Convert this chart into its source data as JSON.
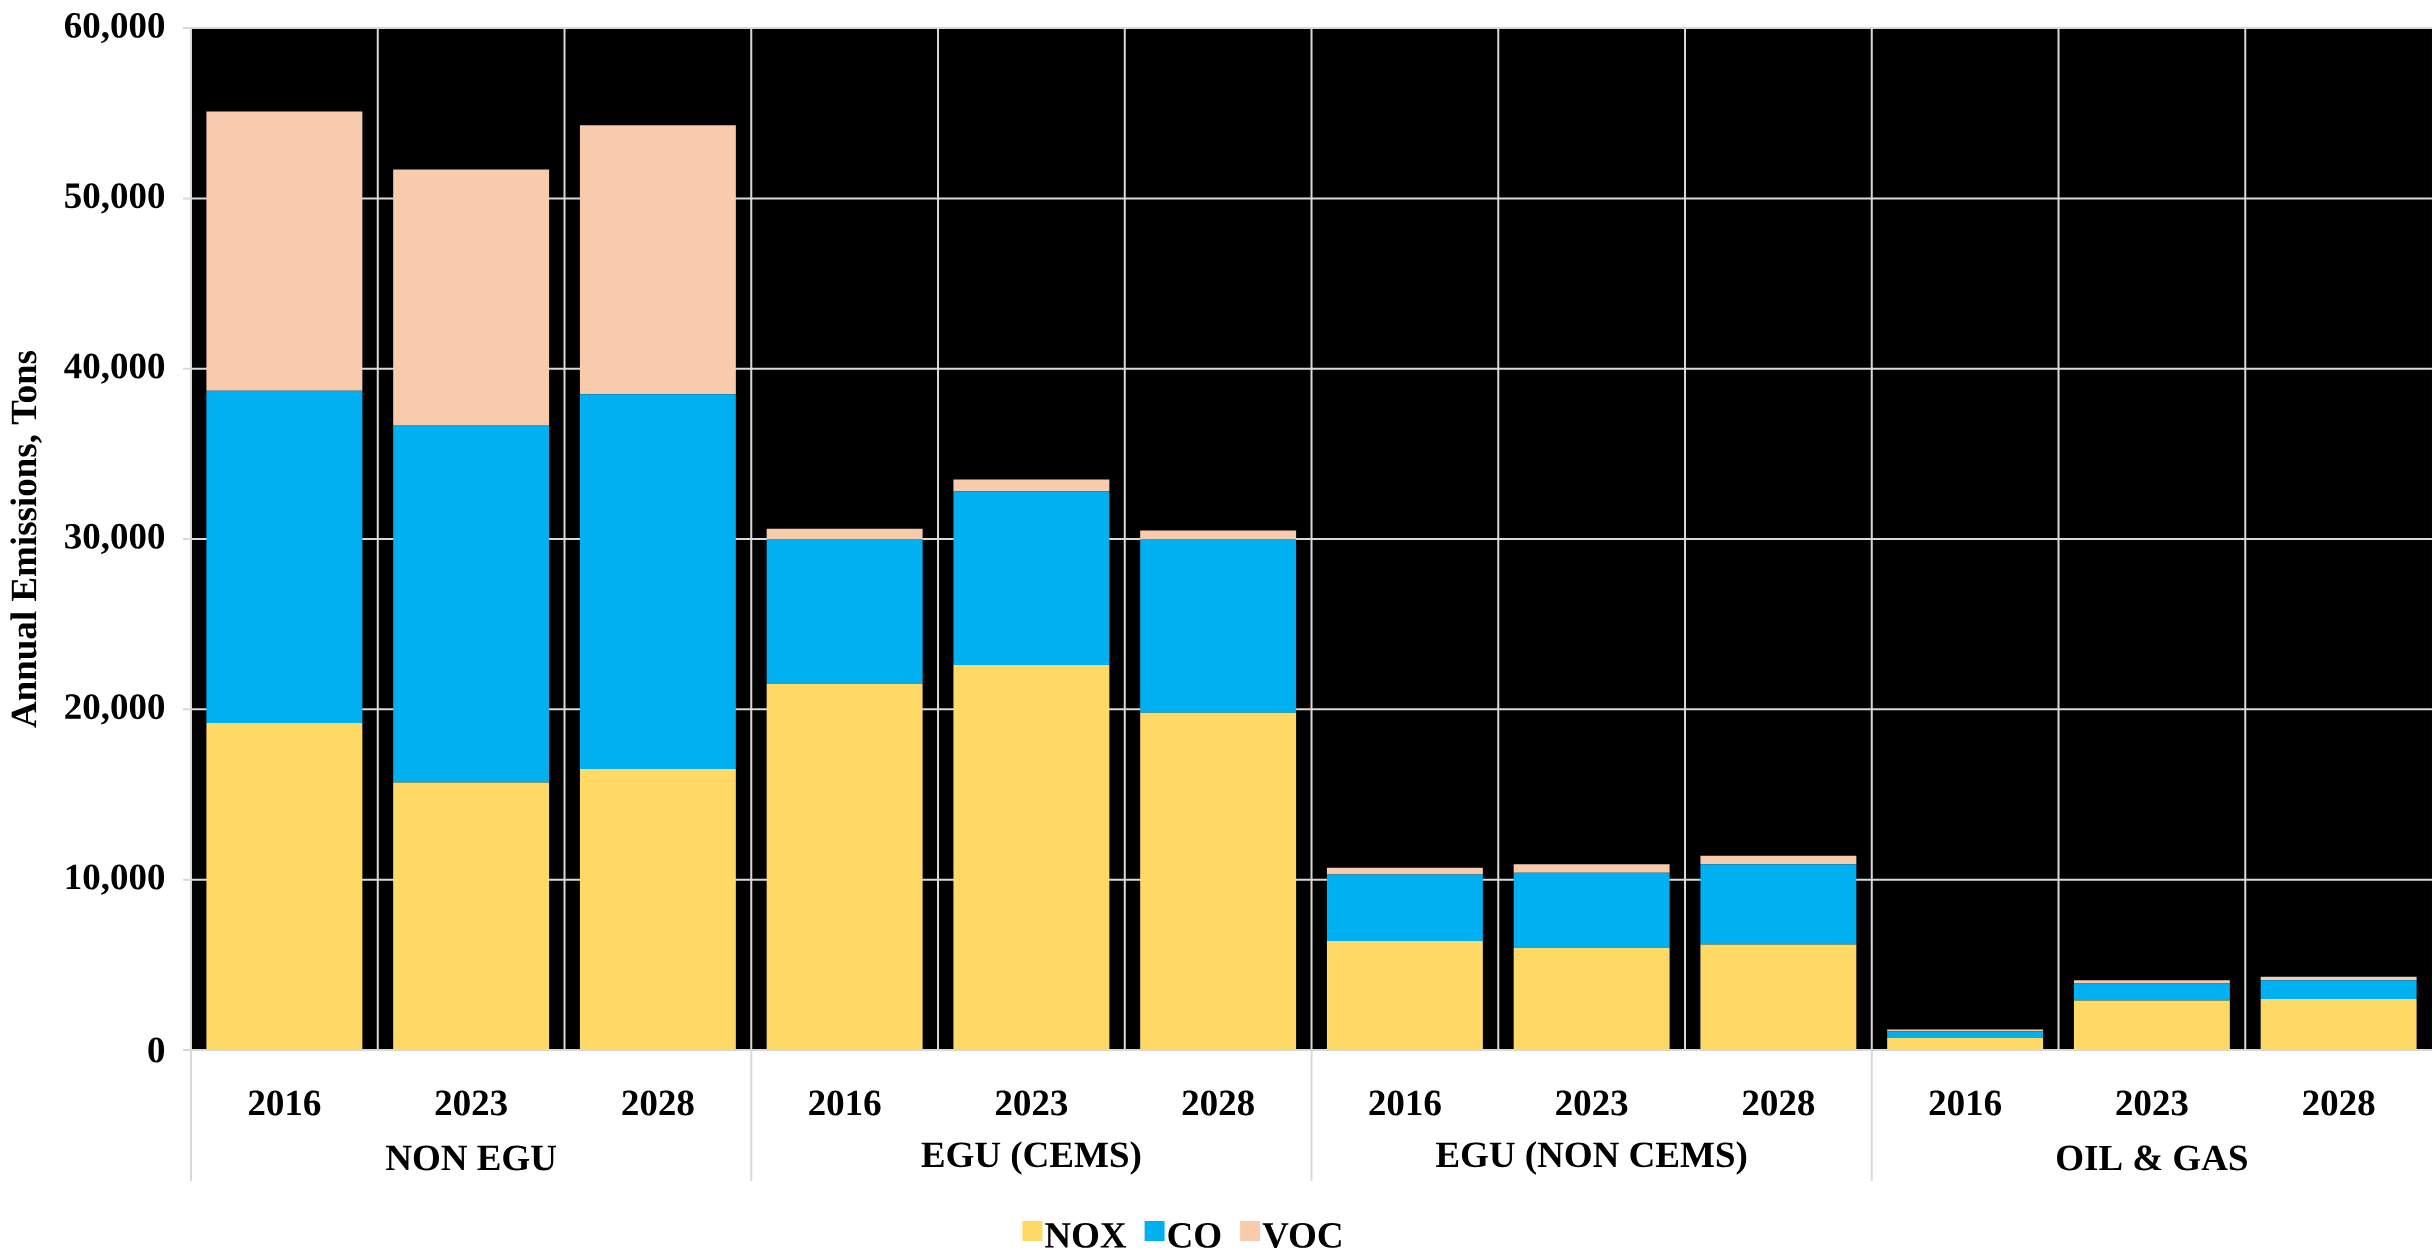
{
  "chart_data": {
    "type": "bar",
    "stacked": true,
    "categories": [
      "2016",
      "2023",
      "2028",
      "2016",
      "2023",
      "2028",
      "2016",
      "2023",
      "2028",
      "2016",
      "2023",
      "2028"
    ],
    "annotations": [
      "NON EGU",
      "EGU (CEMS)",
      "EGU (NON CEMS)",
      "OIL & GAS"
    ],
    "ylabel": "Annual Emissions, Tons",
    "series": [
      {
        "name": "NOX",
        "color": "#ffd966",
        "values": [
          19200,
          15700,
          16500,
          21500,
          22600,
          19800,
          6400,
          6000,
          6200,
          700,
          2900,
          3000
        ]
      },
      {
        "name": "CO",
        "color": "#00b0f0",
        "values": [
          19500,
          21000,
          22000,
          8500,
          10200,
          10200,
          3900,
          4400,
          4700,
          400,
          1000,
          1100
        ]
      },
      {
        "name": "VOC",
        "color": "#f8cbad",
        "values": [
          16400,
          15000,
          15800,
          600,
          700,
          500,
          400,
          500,
          500,
          100,
          200,
          200
        ]
      }
    ],
    "ylim": [
      0,
      60000
    ],
    "yticks": [
      0,
      {
        "value": 10000,
        "label": "10,000"
      },
      {
        "value": 20000,
        "label": "20,000"
      },
      {
        "value": 30000,
        "label": "30,000"
      },
      {
        "value": 40000,
        "label": "40,000"
      },
      {
        "value": 50000,
        "label": "50,000"
      },
      {
        "value": 60000,
        "label": "60,000"
      }
    ],
    "grid": true,
    "legend": "bottom"
  }
}
